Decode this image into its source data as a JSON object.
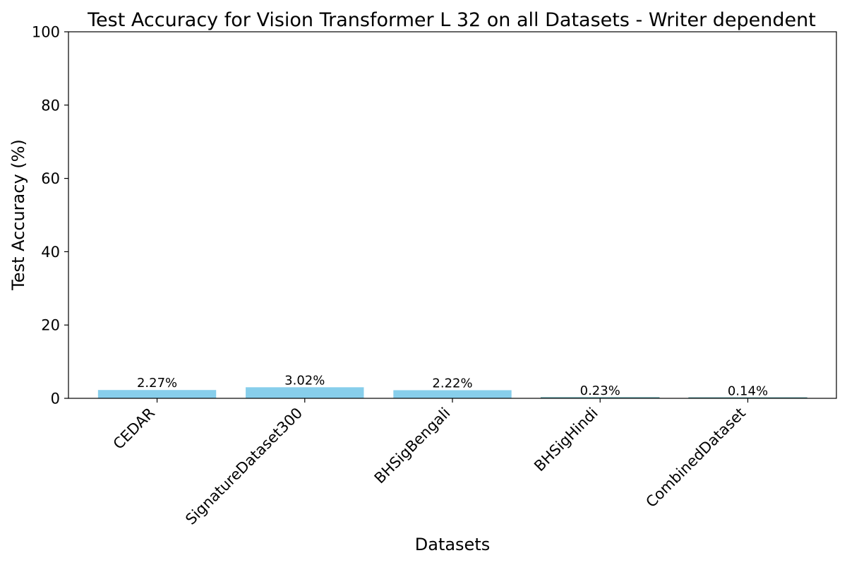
{
  "chart_data": {
    "type": "bar",
    "title": "Test Accuracy for Vision Transformer L 32 on all Datasets - Writer dependent",
    "xlabel": "Datasets",
    "ylabel": "Test Accuracy (%)",
    "categories": [
      "CEDAR",
      "SignatureDataset300",
      "BHSigBengali",
      "BHSigHindi",
      "CombinedDataset"
    ],
    "values": [
      2.27,
      3.02,
      2.22,
      0.23,
      0.14
    ],
    "data_labels": [
      "2.27%",
      "3.02%",
      "2.22%",
      "0.23%",
      "0.14%"
    ],
    "ylim": [
      0,
      100
    ],
    "yticks": [
      0,
      20,
      40,
      60,
      80,
      100
    ],
    "ytick_labels": [
      "0",
      "20",
      "40",
      "60",
      "80",
      "100"
    ],
    "grid": false,
    "bar_color": "#87ceeb",
    "edge_color": "#5f9ea0"
  }
}
